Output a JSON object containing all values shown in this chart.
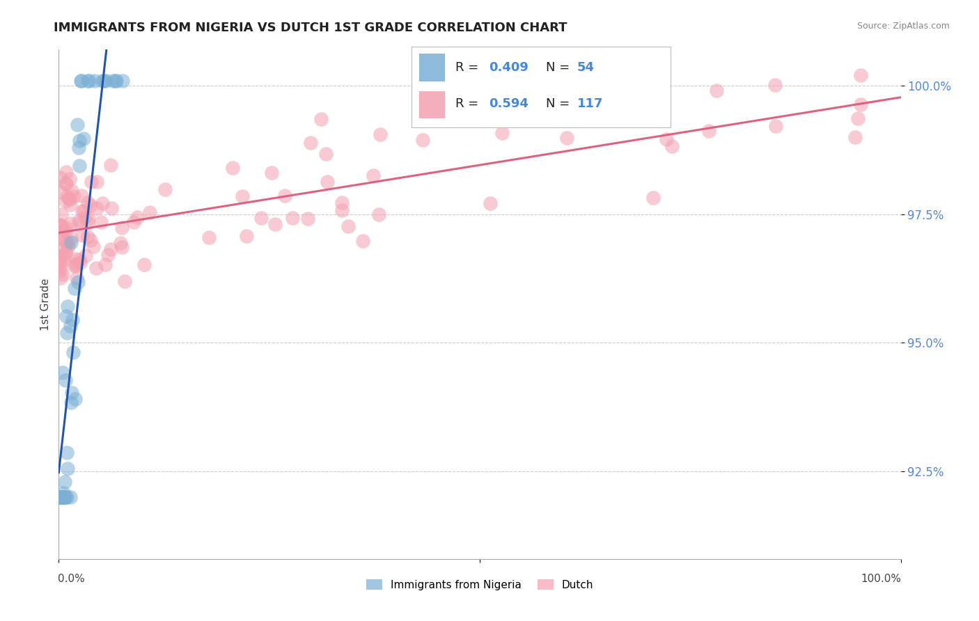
{
  "title": "IMMIGRANTS FROM NIGERIA VS DUTCH 1ST GRADE CORRELATION CHART",
  "source": "Source: ZipAtlas.com",
  "ylabel": "1st Grade",
  "legend_blue_label": "Immigrants from Nigeria",
  "legend_pink_label": "Dutch",
  "r_blue": 0.409,
  "n_blue": 54,
  "r_pink": 0.594,
  "n_pink": 117,
  "blue_color": "#7BAFD4",
  "pink_color": "#F4A0B0",
  "blue_line_color": "#2255AA",
  "pink_line_color": "#E06080",
  "background_color": "#FFFFFF",
  "grid_color": "#CCCCCC",
  "title_fontsize": 13,
  "annotation_fontsize": 14,
  "label_fontsize": 11,
  "y_ticks": [
    0.925,
    0.95,
    0.975,
    1.0
  ],
  "y_tick_labels": [
    "92.5%",
    "95.0%",
    "97.5%",
    "100.0%"
  ],
  "y_min": 0.908,
  "y_max": 1.007,
  "x_min": 0.0,
  "x_max": 1.0
}
